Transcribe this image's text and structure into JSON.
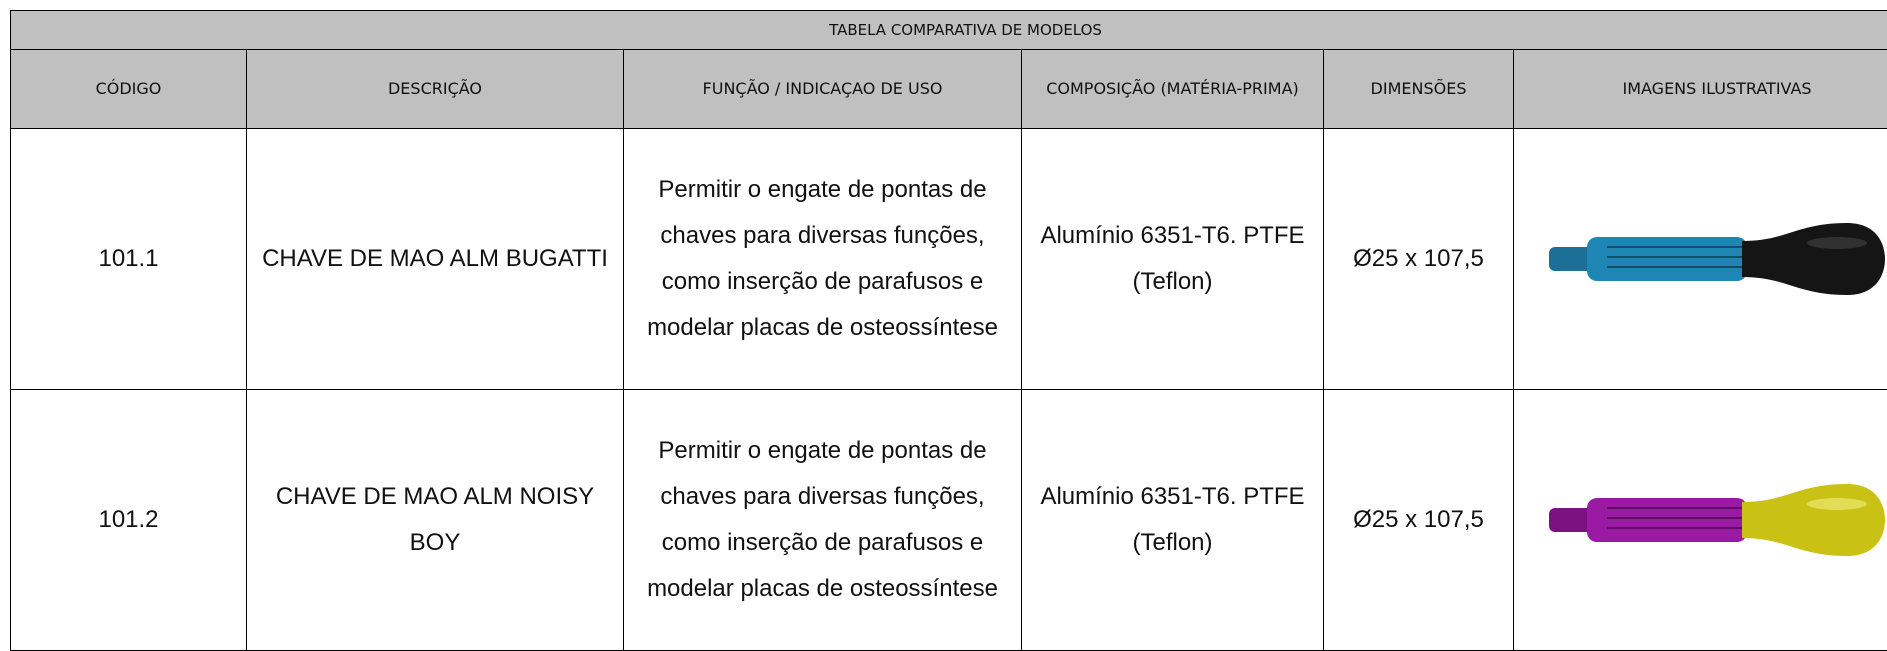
{
  "header": {
    "title": "TABELA COMPARATIVA DE MODELOS"
  },
  "table": {
    "columns": [
      "CÓDIGO",
      "DESCRIÇÃO",
      "FUNÇÃO / INDICAÇAO DE USO",
      "COMPOSIÇÃO (MATÉRIA-PRIMA)",
      "DIMENSÕES",
      "IMAGENS ILUSTRATIVAS"
    ],
    "rows": [
      [
        "101.1",
        "CHAVE DE MAO ALM BUGATTI",
        "Permitir o engate de pontas de chaves para diversas funções, como inserção de parafusos e modelar placas de osteossíntese",
        "Alumínio 6351-T6. PTFE (Teflon)",
        "Ø25 x 107,5"
      ],
      [
        "101.2",
        "CHAVE DE MAO ALM NOISY BOY",
        "Permitir o engate de pontas de chaves para diversas funções, como inserção de parafusos e modelar placas de osteossíntese",
        "Alumínio 6351-T6. PTFE (Teflon)",
        "Ø25 x 107,5"
      ]
    ]
  }
}
